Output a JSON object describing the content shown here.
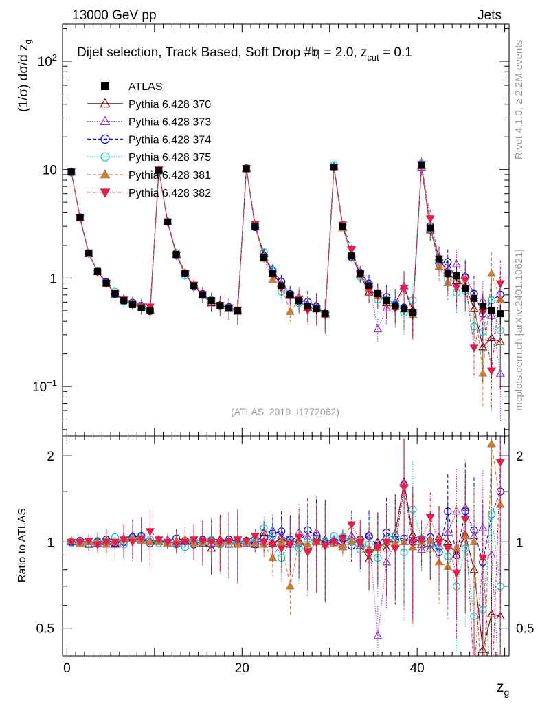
{
  "header": {
    "energy_label": "13000 GeV pp",
    "category_label": "Jets",
    "ratio_ylabel": "Ratio to ATLAS",
    "analysis_id": "(ATLAS_2019_I1772062)",
    "side_label_rivet": "Rivet 4.1.0, ≥ 2.2M events",
    "side_label_site": "mcplots.cern.ch [arXiv:2401.10621]"
  },
  "chart_data": {
    "type": "scatter",
    "title_parts": {
      "main": "Dijet selection, Track Based, Soft Drop #b",
      "eta": "η = 2.0, z",
      "cut_sub": "cut",
      "cut_val": " = 0.1"
    },
    "ylabel_parts": {
      "prefix": "(1/σ) dσ/d z",
      "sub": "g"
    },
    "xlabel_parts": {
      "main": "z",
      "sub": "g"
    },
    "xlim": [
      -0.5,
      50.5
    ],
    "ylim_main": [
      0.035,
      220
    ],
    "ylim_ratio": [
      0.4,
      2.35
    ],
    "yscale_main": "log",
    "yscale_ratio": "log",
    "x_ticks": [
      0,
      20,
      40
    ],
    "y_ticks_main": [
      {
        "value": 0.1,
        "label": "10",
        "sup": "−1"
      },
      {
        "value": 1,
        "label": "1",
        "sup": ""
      },
      {
        "value": 10,
        "label": "10",
        "sup": ""
      },
      {
        "value": 100,
        "label": "10",
        "sup": "2"
      }
    ],
    "y_ticks_ratio": [
      {
        "value": 0.5,
        "label": "0.5"
      },
      {
        "value": 1,
        "label": "1"
      },
      {
        "value": 2,
        "label": "2"
      }
    ],
    "x": [
      0.5,
      1.5,
      2.5,
      3.5,
      4.5,
      5.5,
      6.5,
      7.5,
      8.5,
      9.5,
      10.5,
      11.5,
      12.5,
      13.5,
      14.5,
      15.5,
      16.5,
      17.5,
      18.5,
      19.5,
      20.5,
      21.5,
      22.5,
      23.5,
      24.5,
      25.5,
      26.5,
      27.5,
      28.5,
      29.5,
      30.5,
      31.5,
      32.5,
      33.5,
      34.5,
      35.5,
      36.5,
      37.5,
      38.5,
      39.5,
      40.5,
      41.5,
      42.5,
      43.5,
      44.5,
      45.5,
      46.5,
      47.5,
      48.5,
      49.5
    ],
    "data": {
      "name": "ATLAS",
      "values": [
        9.5,
        3.6,
        1.7,
        1.15,
        0.9,
        0.72,
        0.62,
        0.57,
        0.53,
        0.5,
        9.8,
        3.3,
        1.65,
        1.1,
        0.85,
        0.7,
        0.62,
        0.56,
        0.53,
        0.5,
        10.2,
        3.0,
        1.55,
        1.1,
        0.85,
        0.7,
        0.62,
        0.55,
        0.52,
        0.47,
        10.5,
        3.0,
        1.6,
        1.1,
        0.85,
        0.72,
        0.62,
        0.55,
        0.52,
        0.48,
        11.0,
        2.9,
        1.5,
        1.1,
        1.05,
        0.8,
        0.65,
        0.55,
        0.5,
        0.47
      ]
    },
    "series": [
      {
        "name": "Pythia 6.428 370",
        "color": "#800000",
        "marker": "triangle-open",
        "dash": "",
        "ratios": [
          1.0,
          0.99,
          0.98,
          1.0,
          1.01,
          0.99,
          1.02,
          1.03,
          1.02,
          1.0,
          1.02,
          0.99,
          1.0,
          1.01,
          1.0,
          0.99,
          0.95,
          1.02,
          1.0,
          0.99,
          1.01,
          0.98,
          1.08,
          0.99,
          1.03,
          1.0,
          1.0,
          0.97,
          1.0,
          1.02,
          1.0,
          0.98,
          1.05,
          0.97,
          0.87,
          1.0,
          0.95,
          1.07,
          1.62,
          1.06,
          0.98,
          0.95,
          1.04,
          1.0,
          0.9,
          1.06,
          0.8,
          0.42,
          0.56,
          0.55
        ]
      },
      {
        "name": "Pythia 6.428 373",
        "color": "#9a32cd",
        "marker": "triangle-open",
        "dash": "1.5,2",
        "ratios": [
          1.01,
          1.0,
          1.0,
          0.99,
          1.0,
          0.98,
          1.03,
          1.05,
          1.02,
          1.01,
          1.0,
          1.02,
          0.99,
          1.0,
          1.01,
          1.02,
          0.99,
          1.0,
          0.98,
          1.01,
          0.99,
          1.02,
          1.0,
          1.1,
          1.05,
          0.98,
          1.08,
          1.04,
          1.08,
          1.0,
          1.02,
          0.96,
          1.05,
          0.99,
          1.06,
          0.47,
          0.85,
          0.99,
          1.6,
          1.02,
          0.94,
          0.99,
          0.97,
          1.08,
          1.28,
          1.32,
          1.05,
          1.12,
          0.9,
          0.28
        ]
      },
      {
        "name": "Pythia 6.428 374",
        "color": "#0000e0",
        "marker": "circle-open",
        "dash": "5,3",
        "ratios": [
          1.0,
          1.01,
          0.99,
          1.0,
          1.02,
          0.99,
          1.0,
          1.04,
          1.05,
          0.99,
          0.99,
          1.0,
          1.03,
          1.01,
          0.98,
          1.02,
          1.01,
          0.99,
          1.02,
          1.0,
          1.01,
          0.98,
          1.03,
          1.07,
          1.09,
          1.02,
          0.99,
          1.1,
          1.05,
          0.99,
          1.0,
          1.03,
          0.97,
          1.02,
          1.05,
          0.97,
          1.08,
          1.02,
          1.03,
          1.0,
          1.02,
          1.04,
          0.92,
          1.28,
          0.9,
          1.28,
          1.1,
          0.85,
          1.25,
          1.5
        ]
      },
      {
        "name": "Pythia 6.428 375",
        "color": "#00cdcd",
        "marker": "circle-open",
        "dash": "1.5,2",
        "ratios": [
          0.99,
          1.0,
          0.99,
          1.01,
          1.0,
          1.04,
          0.98,
          1.02,
          1.04,
          1.02,
          0.99,
          1.0,
          0.98,
          0.96,
          1.01,
          0.99,
          1.02,
          0.98,
          0.99,
          1.01,
          1.0,
          1.03,
          1.12,
          1.05,
          0.88,
          1.0,
          0.95,
          1.0,
          1.02,
          1.0,
          1.05,
          1.04,
          1.0,
          0.94,
          0.98,
          0.88,
          1.02,
          1.05,
          0.92,
          1.3,
          1.03,
          0.98,
          0.95,
          0.89,
          0.7,
          0.95,
          0.55,
          0.58,
          1.25,
          0.7
        ]
      },
      {
        "name": "Pythia 6.428 381",
        "color": "#c08040",
        "marker": "triangle-filled",
        "dash": "5,3",
        "ratios": [
          1.01,
          0.99,
          1.0,
          1.0,
          0.98,
          1.0,
          1.02,
          1.03,
          1.01,
          1.0,
          1.0,
          0.99,
          1.01,
          1.02,
          0.99,
          1.0,
          1.01,
          0.99,
          1.0,
          0.98,
          1.0,
          0.99,
          0.98,
          0.88,
          1.0,
          0.7,
          1.0,
          0.98,
          1.0,
          0.98,
          0.99,
          0.96,
          1.0,
          1.02,
          0.94,
          0.95,
          1.0,
          0.99,
          1.0,
          0.96,
          1.0,
          1.02,
          0.85,
          0.82,
          0.95,
          1.05,
          1.0,
          0.24,
          2.2,
          1.35
        ]
      },
      {
        "name": "Pythia 6.428 382",
        "color": "#e0204a",
        "marker": "triangle-down-filled",
        "dash": "4,2,1,2",
        "ratios": [
          1.0,
          1.0,
          1.01,
          0.98,
          1.0,
          1.0,
          1.02,
          1.0,
          1.03,
          1.09,
          1.02,
          1.0,
          0.98,
          1.0,
          1.02,
          1.01,
          1.0,
          1.0,
          1.01,
          1.02,
          1.01,
          1.05,
          1.0,
          0.98,
          0.95,
          0.98,
          1.04,
          0.92,
          1.0,
          0.97,
          1.0,
          1.03,
          1.15,
          1.0,
          0.92,
          0.96,
          1.0,
          0.95,
          1.55,
          1.0,
          1.02,
          1.22,
          1.0,
          0.95,
          0.78,
          1.2,
          0.35,
          0.88,
          0.28,
          1.9
        ]
      }
    ]
  }
}
